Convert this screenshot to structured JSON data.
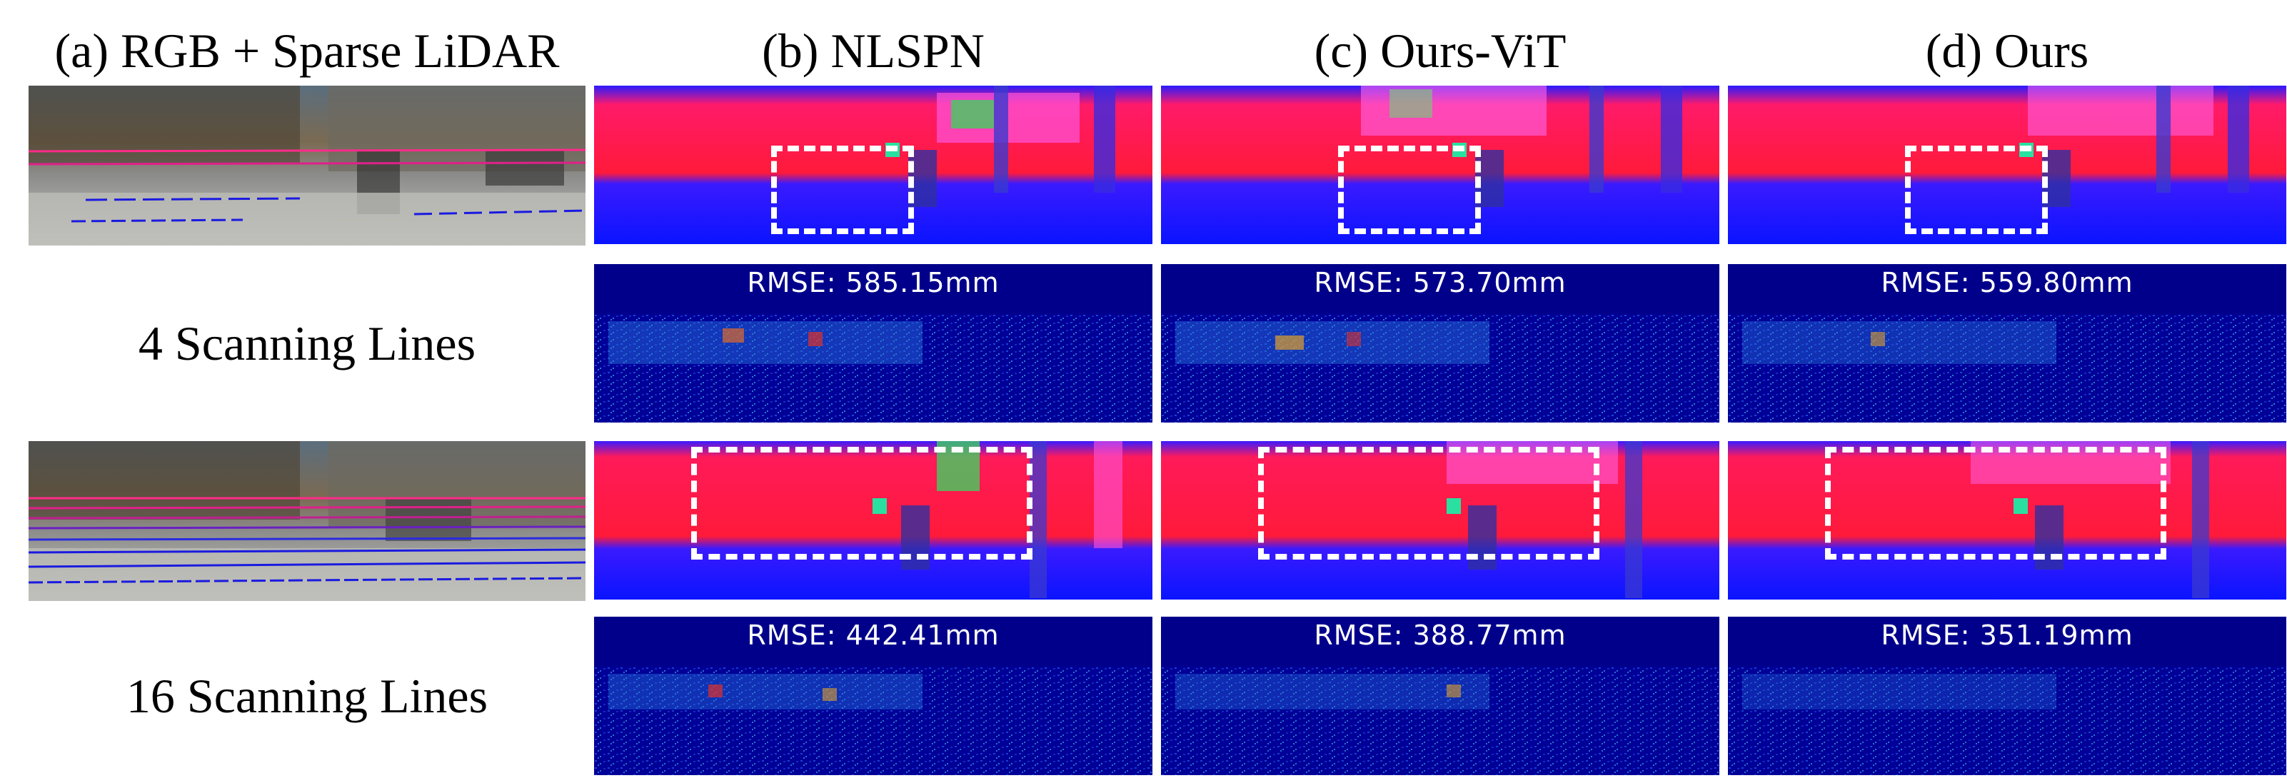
{
  "headers": {
    "col_a": "(a) RGB + Sparse LiDAR",
    "col_b": "(b) NLSPN",
    "col_c": "(c) Ours-ViT",
    "col_d": "(d) Ours"
  },
  "rows": [
    {
      "label": "4  Scanning Lines",
      "rmse": {
        "nlspn": "RMSE: 585.15mm",
        "ours_vit": "RMSE: 573.70mm",
        "ours": "RMSE: 559.80mm"
      }
    },
    {
      "label": "16  Scanning Lines",
      "rmse": {
        "nlspn": "RMSE: 442.41mm",
        "ours_vit": "RMSE: 388.77mm",
        "ours": "RMSE: 351.19mm"
      }
    }
  ],
  "colors": {
    "depth_far": "#ff1a4a",
    "depth_near": "#1a1aff",
    "error_bg": "#00008b",
    "highlight_box": "#ffffff"
  }
}
